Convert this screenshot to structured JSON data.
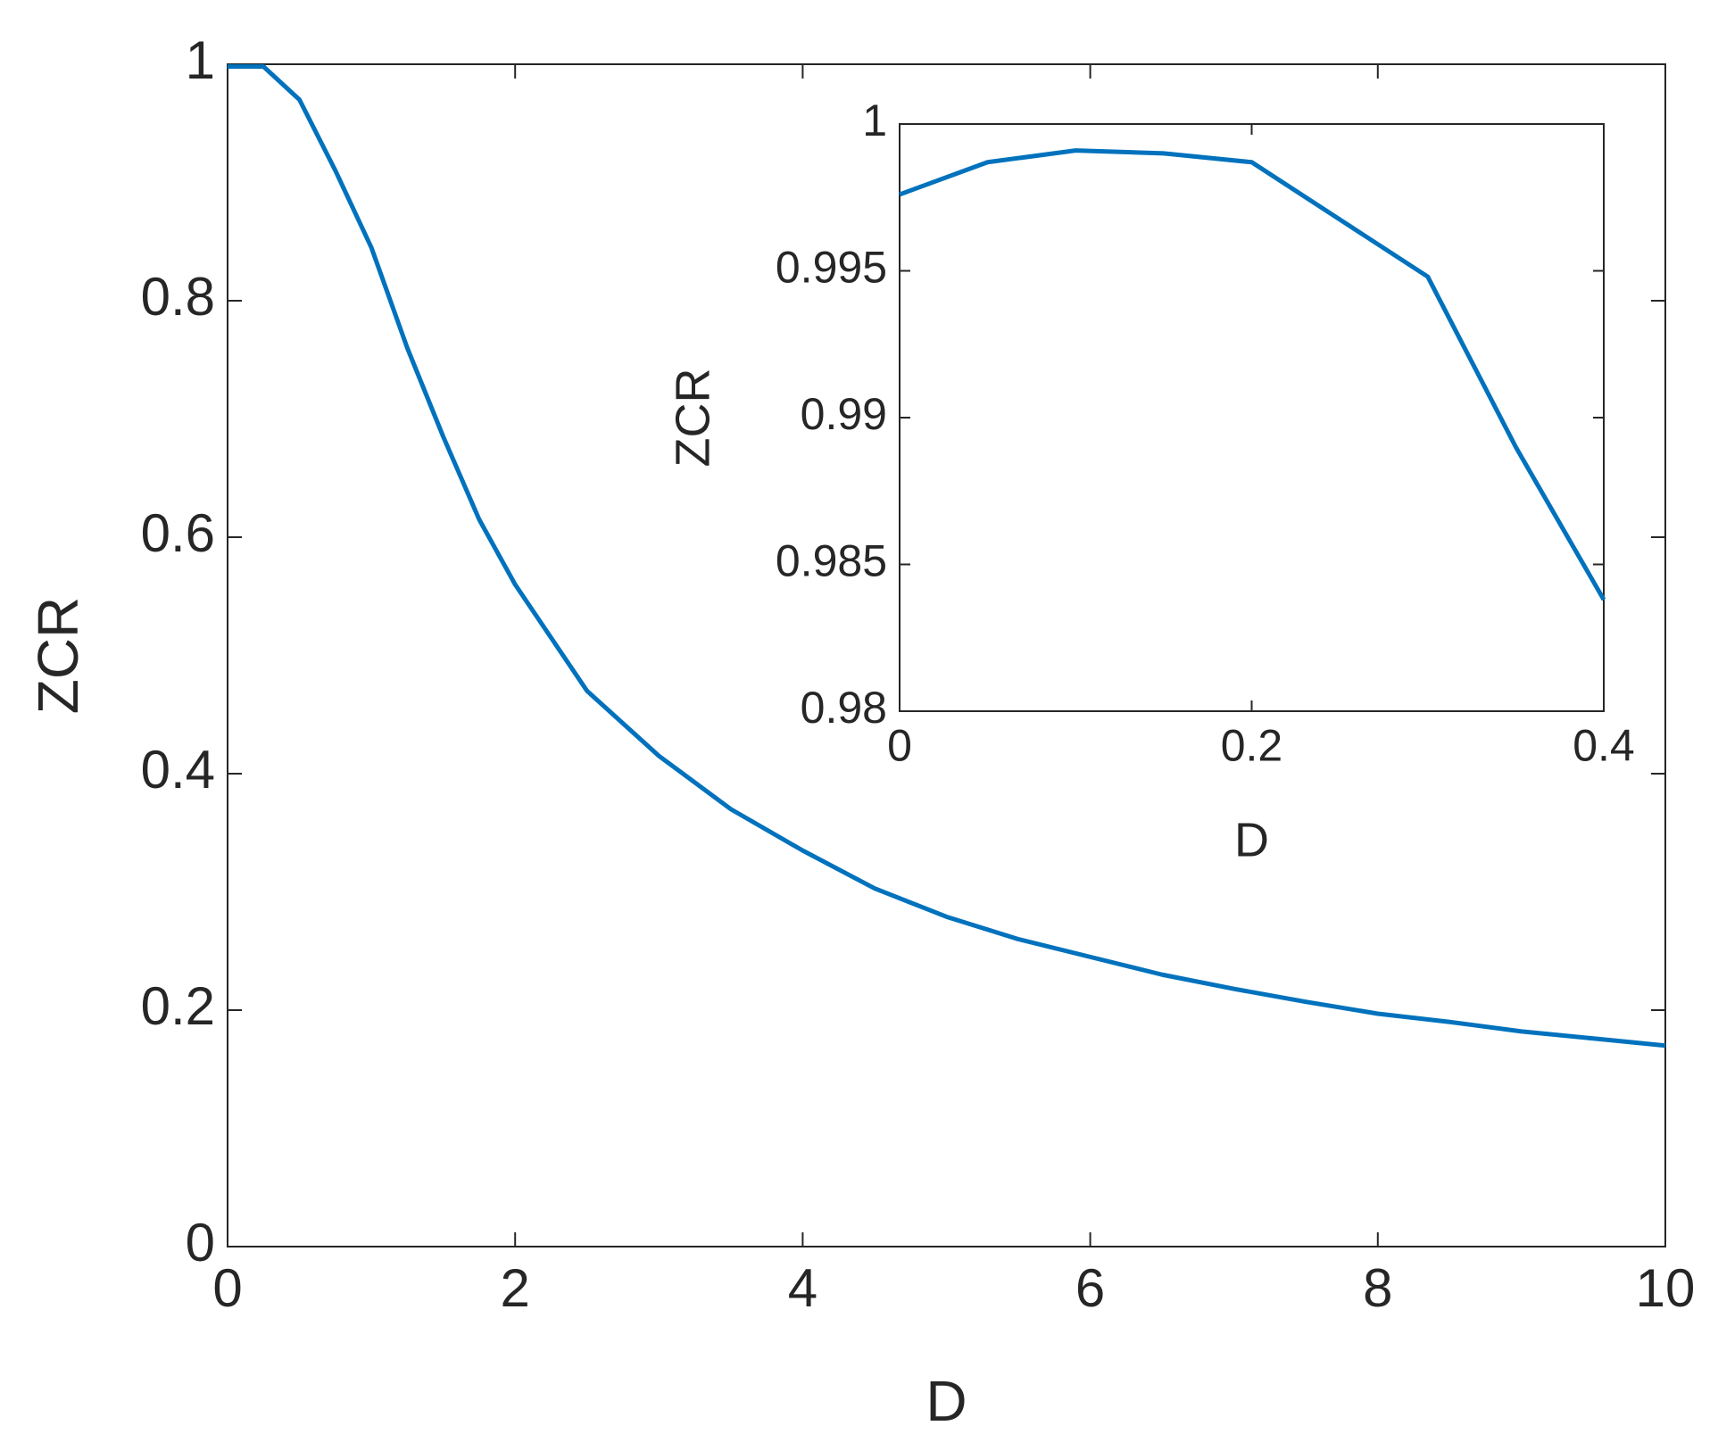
{
  "chart_data": [
    {
      "type": "line",
      "xlabel": "D",
      "ylabel": "ZCR",
      "x": [
        0,
        0.25,
        0.5,
        0.75,
        1,
        1.25,
        1.5,
        1.75,
        2,
        2.5,
        3,
        3.5,
        4,
        4.5,
        5,
        5.5,
        6,
        6.5,
        7,
        7.5,
        8,
        8.5,
        9,
        9.5,
        10
      ],
      "series": [
        {
          "color": "#0072bd",
          "values": [
            0.998,
            0.998,
            0.97,
            0.91,
            0.845,
            0.76,
            0.685,
            0.615,
            0.56,
            0.47,
            0.415,
            0.37,
            0.335,
            0.303,
            0.279,
            0.26,
            0.245,
            0.23,
            0.218,
            0.207,
            0.197,
            0.19,
            0.182,
            0.176,
            0.17
          ]
        }
      ],
      "xlim": [
        0,
        10
      ],
      "xticks": [
        0,
        2,
        4,
        6,
        8,
        10
      ],
      "ylim": [
        0,
        1
      ],
      "yticks": [
        0,
        0.2,
        0.4,
        0.6,
        0.8,
        1
      ]
    },
    {
      "type": "line",
      "xlabel": "D",
      "ylabel": "ZCR",
      "x": [
        0,
        0.05,
        0.1,
        0.15,
        0.2,
        0.3,
        0.35,
        0.4
      ],
      "series": [
        {
          "color": "#0072bd",
          "values": [
            0.9976,
            0.9987,
            0.9991,
            0.999,
            0.9987,
            0.9948,
            0.989,
            0.9838
          ]
        }
      ],
      "xlim": [
        0,
        0.4
      ],
      "xticks": [
        0,
        0.2,
        0.4
      ],
      "ylim": [
        0.98,
        1
      ],
      "yticks": [
        0.98,
        0.985,
        0.99,
        0.995,
        1
      ]
    }
  ]
}
